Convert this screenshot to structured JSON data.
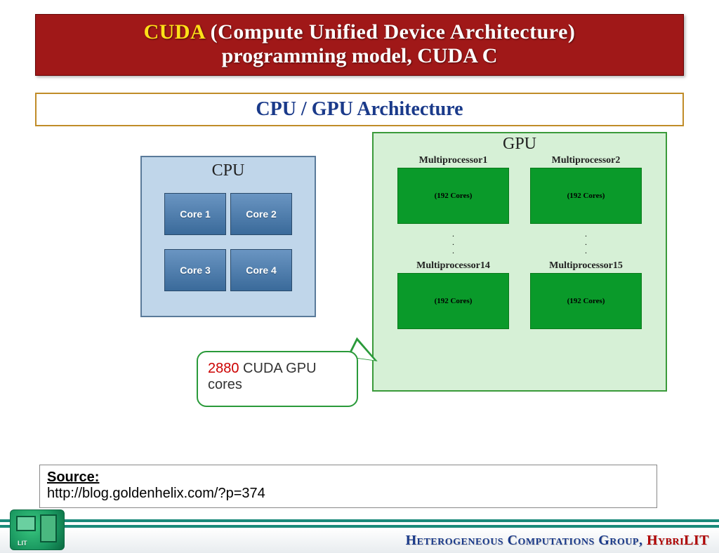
{
  "title": {
    "cuda": "CUDA",
    "rest_line1": " (Compute Unified Device Architecture)",
    "line2": "programming model, CUDA C",
    "banner_bg": "#a01818",
    "cuda_color": "#ffe018",
    "text_color": "#ffffff",
    "fontsize": 30
  },
  "subtitle": {
    "text": "CPU / GPU Architecture",
    "border_color": "#c08c28",
    "text_color": "#1a3a8a",
    "fontsize": 28
  },
  "cpu": {
    "label": "CPU",
    "box_bg": "#c0d6ea",
    "box_border": "#5a7a9a",
    "core_bg_top": "#6a95c2",
    "core_bg_bottom": "#3a6a9a",
    "core_text_color": "#ffffff",
    "cores": [
      "Core 1",
      "Core 2",
      "Core 3",
      "Core 4"
    ]
  },
  "gpu": {
    "label": "GPU",
    "box_bg": "#d6f0d6",
    "box_border": "#3a9a3a",
    "mp_block_bg": "#0a9a2a",
    "mp_text": "(192 Cores)",
    "row1_labels": [
      "Multiprocessor1",
      "Multiprocessor2"
    ],
    "row2_labels": [
      "Multiprocessor14",
      "Multiprocessor15"
    ],
    "dots": ". . ."
  },
  "callout": {
    "count": "2880",
    "rest": " CUDA GPU cores",
    "border_color": "#2a9a3a",
    "count_color": "#cc0000"
  },
  "source": {
    "label": "Source:",
    "url": "http://blog.goldenhelix.com/?p=374"
  },
  "footer": {
    "group_text": "Heterogeneous Computations Group,   ",
    "brand_text": "HybriLIT",
    "bar_color": "#1a8a7a",
    "group_color": "#1a3a8a",
    "brand_color": "#b00000",
    "logo_text": "LIT"
  }
}
